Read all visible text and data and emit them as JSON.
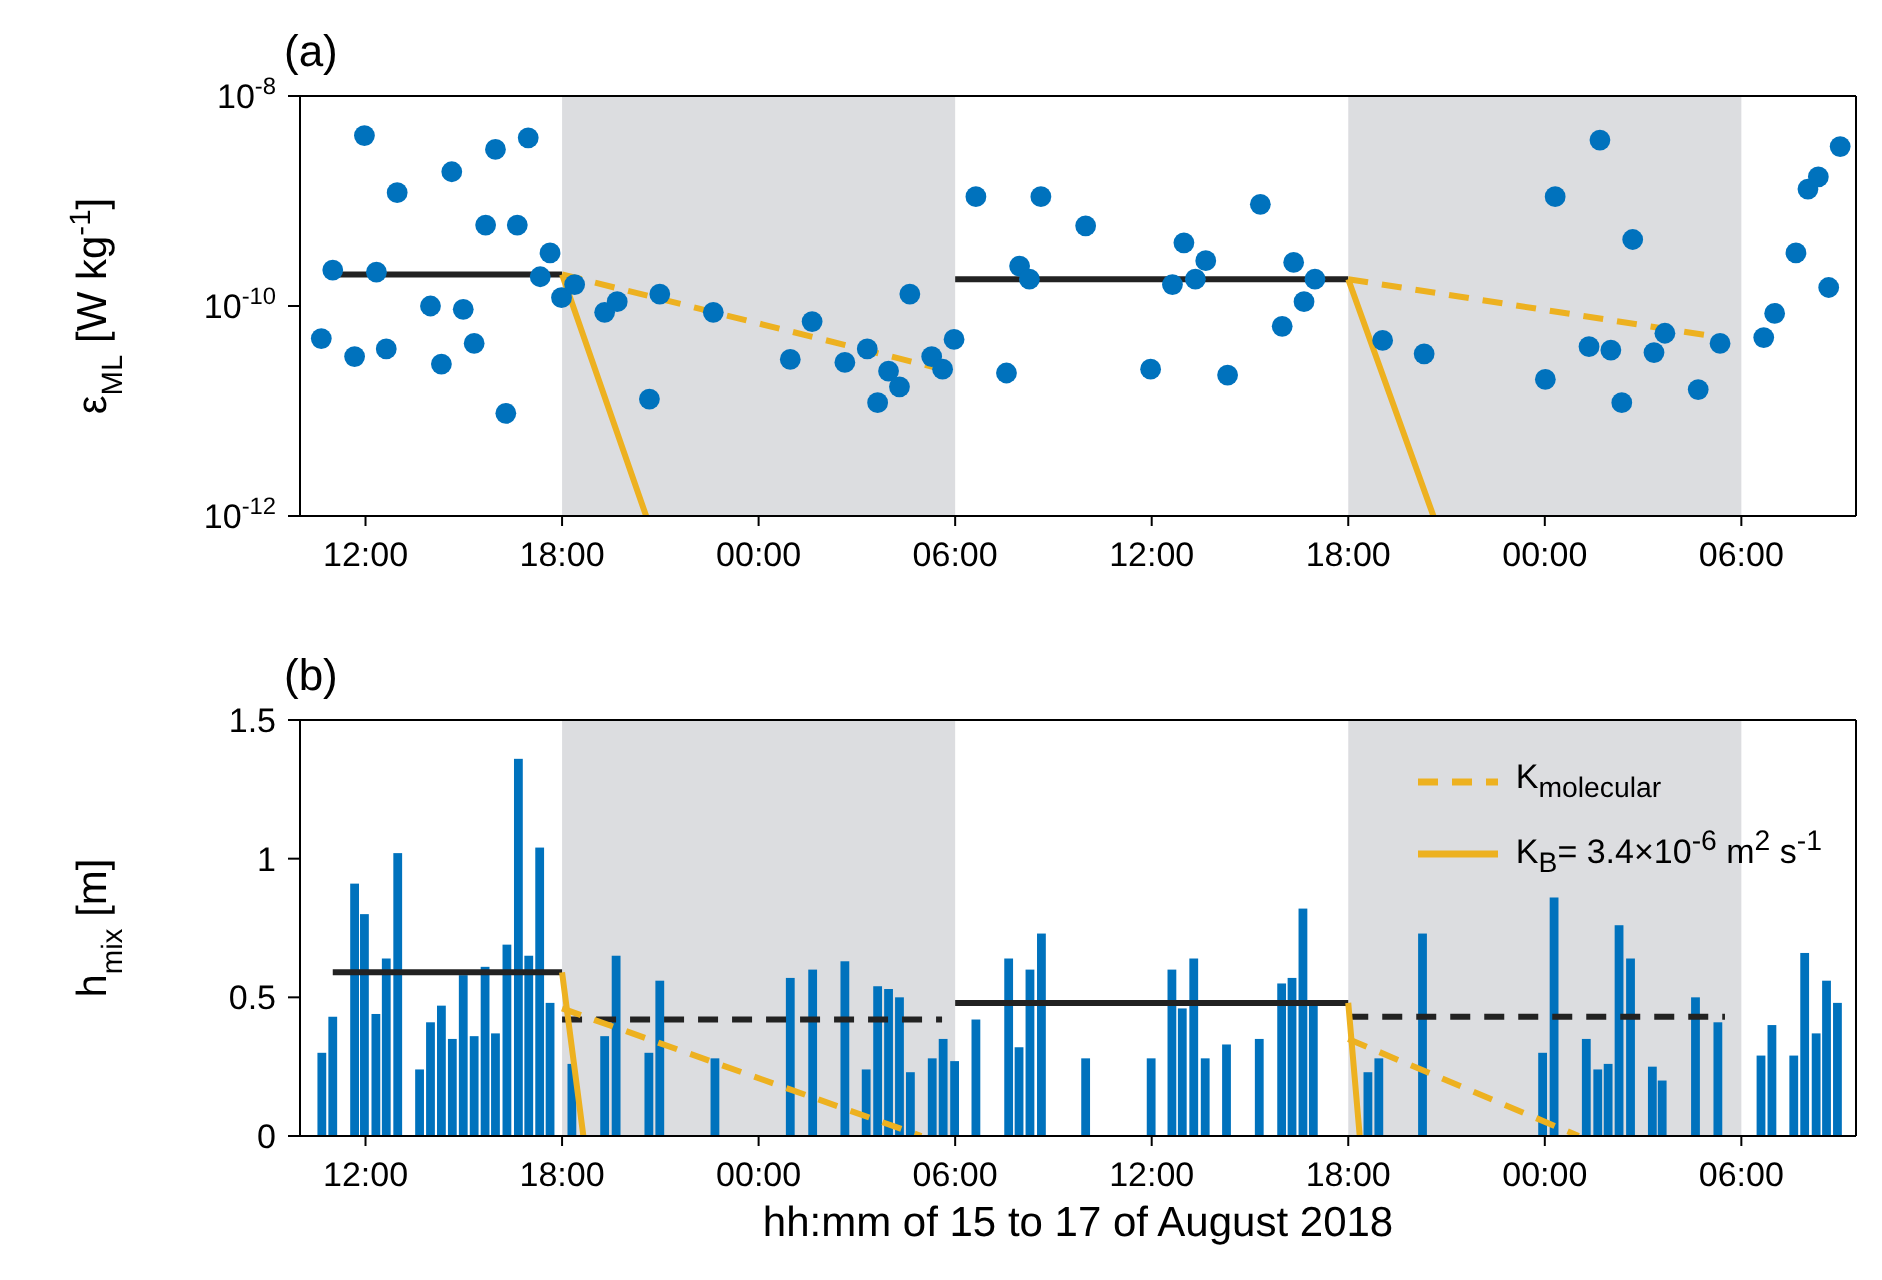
{
  "chart_data": [
    {
      "type": "scatter",
      "title": "(a)",
      "ylabel": "ε$_{ML}$ [W kg$^{-1}$]",
      "log": "y",
      "xlim": [
        "2018-08-15T10:00",
        "2018-08-17T09:30"
      ],
      "xticks": [
        {
          "value": "2018-08-15T12:00",
          "label": "12:00"
        },
        {
          "value": "2018-08-15T18:00",
          "label": "18:00"
        },
        {
          "value": "2018-08-16T00:00",
          "label": "00:00"
        },
        {
          "value": "2018-08-16T06:00",
          "label": "06:00"
        },
        {
          "value": "2018-08-16T12:00",
          "label": "12:00"
        },
        {
          "value": "2018-08-16T18:00",
          "label": "18:00"
        },
        {
          "value": "2018-08-17T00:00",
          "label": "00:00"
        },
        {
          "value": "2018-08-17T06:00",
          "label": "06:00"
        }
      ],
      "ylim": [
        1e-12,
        1e-08
      ],
      "yticks": [
        {
          "value": 1e-12,
          "label": "10$^{-12}$"
        },
        {
          "value": 1e-10,
          "label": "10$^{-10}$"
        },
        {
          "value": 1e-08,
          "label": "10$^{-8}$"
        }
      ],
      "bands": [
        {
          "axis": "x",
          "from": "2018-08-15T18:00",
          "to": "2018-08-16T06:00",
          "color": "#dcdde0"
        },
        {
          "axis": "x",
          "from": "2018-08-16T18:00",
          "to": "2018-08-17T06:00",
          "color": "#dcdde0"
        }
      ],
      "series": [
        {
          "color": "#0072bd",
          "marker": "circle",
          "x": [
            "2018-08-15T10:39",
            "2018-08-15T11:00",
            "2018-08-15T11:40",
            "2018-08-15T11:58",
            "2018-08-15T12:20",
            "2018-08-15T12:38",
            "2018-08-15T12:58",
            "2018-08-15T13:59",
            "2018-08-15T14:19",
            "2018-08-15T14:38",
            "2018-08-15T14:59",
            "2018-08-15T15:19",
            "2018-08-15T15:40",
            "2018-08-15T15:58",
            "2018-08-15T16:17",
            "2018-08-15T16:38",
            "2018-08-15T16:58",
            "2018-08-15T17:20",
            "2018-08-15T17:38",
            "2018-08-15T17:59",
            "2018-08-15T18:23",
            "2018-08-15T19:18",
            "2018-08-15T19:41",
            "2018-08-15T20:40",
            "2018-08-15T20:59",
            "2018-08-15T22:37",
            "2018-08-16T00:58",
            "2018-08-16T01:38",
            "2018-08-16T02:38",
            "2018-08-16T03:19",
            "2018-08-16T03:38",
            "2018-08-16T03:58",
            "2018-08-16T04:18",
            "2018-08-16T04:37",
            "2018-08-16T05:17",
            "2018-08-16T05:37",
            "2018-08-16T05:58",
            "2018-08-16T06:38",
            "2018-08-16T07:34",
            "2018-08-16T07:58",
            "2018-08-16T08:16",
            "2018-08-16T08:37",
            "2018-08-16T09:59",
            "2018-08-16T11:58",
            "2018-08-16T12:38",
            "2018-08-16T12:59",
            "2018-08-16T13:20",
            "2018-08-16T13:39",
            "2018-08-16T14:19",
            "2018-08-16T15:19",
            "2018-08-16T15:59",
            "2018-08-16T16:20",
            "2018-08-16T16:39",
            "2018-08-16T16:59",
            "2018-08-16T19:03",
            "2018-08-16T20:19",
            "2018-08-17T00:01",
            "2018-08-17T00:19",
            "2018-08-17T01:21",
            "2018-08-17T01:41",
            "2018-08-17T02:01",
            "2018-08-17T02:21",
            "2018-08-17T02:41",
            "2018-08-17T03:20",
            "2018-08-17T03:40",
            "2018-08-17T04:41",
            "2018-08-17T05:21",
            "2018-08-17T06:41",
            "2018-08-17T07:01",
            "2018-08-17T07:40",
            "2018-08-17T08:02",
            "2018-08-17T08:21",
            "2018-08-17T08:40",
            "2018-08-17T09:01"
          ],
          "values": [
            4.9e-11,
            2.2e-10,
            3.3e-11,
            4.2e-09,
            2.1e-10,
            3.9e-11,
            1.2e-09,
            1e-10,
            2.8e-11,
            1.9e-09,
            9.3e-11,
            4.4e-11,
            5.9e-10,
            3.1e-09,
            9.5e-12,
            5.9e-10,
            4e-09,
            1.9e-10,
            3.2e-10,
            1.2e-10,
            1.6e-10,
            8.7e-11,
            1.1e-10,
            1.3e-11,
            1.3e-10,
            8.7e-11,
            3.1e-11,
            7.1e-11,
            2.9e-11,
            3.9e-11,
            1.2e-11,
            2.4e-11,
            1.7e-11,
            1.3e-10,
            3.3e-11,
            2.5e-11,
            4.8e-11,
            1.1e-09,
            2.3e-11,
            2.4e-10,
            1.8e-10,
            1.1e-09,
            5.8e-10,
            2.5e-11,
            1.6e-10,
            4e-10,
            1.8e-10,
            2.7e-10,
            2.2e-11,
            9.3e-10,
            6.4e-11,
            2.6e-10,
            1.1e-10,
            1.8e-10,
            4.7e-11,
            3.5e-11,
            2e-11,
            1.1e-09,
            4.1e-11,
            3.8e-09,
            3.8e-11,
            1.2e-11,
            4.3e-10,
            3.6e-11,
            5.5e-11,
            1.6e-11,
            4.4e-11,
            5e-11,
            8.5e-11,
            3.2e-10,
            1.3e-09,
            1.7e-09,
            1.5e-10,
            3.3e-09
          ]
        },
        {
          "type": "line",
          "color": "#222222",
          "line_style": "solid",
          "x": [
            "2018-08-15T11:00",
            "2018-08-15T18:00"
          ],
          "values": [
            2e-10,
            2e-10
          ]
        },
        {
          "type": "line",
          "color": "#222222",
          "line_style": "solid",
          "x": [
            "2018-08-16T06:00",
            "2018-08-16T18:00"
          ],
          "values": [
            1.8e-10,
            1.8e-10
          ]
        },
        {
          "type": "line",
          "color": "#edb120",
          "line_style": "dashed",
          "x": [
            "2018-08-15T18:00",
            "2018-08-16T05:36",
            "2018-08-16T11:00",
            "2018-08-16T18:00",
            "2018-08-17T05:24"
          ],
          "values": [
            2e-10,
            2.5e-11,
            null,
            1.8e-10,
            5e-11
          ]
        },
        {
          "type": "line",
          "color": "#edb120",
          "line_style": "solid",
          "x": [
            "2018-08-15T18:00",
            "2018-08-15T20:34",
            "2018-08-16T11:00",
            "2018-08-16T18:00",
            "2018-08-16T20:36"
          ],
          "values": [
            2e-10,
            1e-12,
            null,
            1.8e-10,
            1e-12
          ]
        }
      ]
    },
    {
      "type": "bar",
      "title": "(b)",
      "xlabel": "hh:mm of 15 to 17 of August 2018",
      "ylabel": "h$_{mix}$ [m]",
      "legend": "top right",
      "xlim": [
        "2018-08-15T10:00",
        "2018-08-17T09:30"
      ],
      "xticks": [
        {
          "value": "2018-08-15T12:00",
          "label": "12:00"
        },
        {
          "value": "2018-08-15T18:00",
          "label": "18:00"
        },
        {
          "value": "2018-08-16T00:00",
          "label": "00:00"
        },
        {
          "value": "2018-08-16T06:00",
          "label": "06:00"
        },
        {
          "value": "2018-08-16T12:00",
          "label": "12:00"
        },
        {
          "value": "2018-08-16T18:00",
          "label": "18:00"
        },
        {
          "value": "2018-08-17T00:00",
          "label": "00:00"
        },
        {
          "value": "2018-08-17T06:00",
          "label": "06:00"
        }
      ],
      "ylim": [
        0,
        1.5
      ],
      "yticks": [
        0,
        0.5,
        1,
        1.5
      ],
      "bands": [
        {
          "axis": "x",
          "from": "2018-08-15T18:00",
          "to": "2018-08-16T06:00",
          "color": "#dcdde0"
        },
        {
          "axis": "x",
          "from": "2018-08-16T18:00",
          "to": "2018-08-17T06:00",
          "color": "#dcdde0"
        }
      ],
      "series": [
        {
          "color": "#0072bd",
          "x": [
            "2018-08-15T10:40",
            "2018-08-15T11:00",
            "2018-08-15T11:40",
            "2018-08-15T11:58",
            "2018-08-15T12:19",
            "2018-08-15T12:38",
            "2018-08-15T12:59",
            "2018-08-15T13:39",
            "2018-08-15T13:59",
            "2018-08-15T14:19",
            "2018-08-15T14:39",
            "2018-08-15T14:59",
            "2018-08-15T15:19",
            "2018-08-15T15:39",
            "2018-08-15T15:58",
            "2018-08-15T16:19",
            "2018-08-15T16:40",
            "2018-08-15T16:59",
            "2018-08-15T17:19",
            "2018-08-15T17:38",
            "2018-08-15T18:18",
            "2018-08-15T19:18",
            "2018-08-15T19:39",
            "2018-08-15T20:39",
            "2018-08-15T20:59",
            "2018-08-15T22:40",
            "2018-08-16T00:58",
            "2018-08-16T01:39",
            "2018-08-16T02:38",
            "2018-08-16T03:17",
            "2018-08-16T03:38",
            "2018-08-16T03:58",
            "2018-08-16T04:18",
            "2018-08-16T04:38",
            "2018-08-16T05:18",
            "2018-08-16T05:38",
            "2018-08-16T05:59",
            "2018-08-16T06:38",
            "2018-08-16T07:38",
            "2018-08-16T07:57",
            "2018-08-16T08:17",
            "2018-08-16T08:38",
            "2018-08-16T09:59",
            "2018-08-16T11:59",
            "2018-08-16T12:37",
            "2018-08-16T12:56",
            "2018-08-16T13:17",
            "2018-08-16T13:38",
            "2018-08-16T14:17",
            "2018-08-16T15:17",
            "2018-08-16T15:58",
            "2018-08-16T16:17",
            "2018-08-16T16:37",
            "2018-08-16T16:56",
            "2018-08-16T18:36",
            "2018-08-16T18:56",
            "2018-08-16T20:16",
            "2018-08-16T23:56",
            "2018-08-17T00:17",
            "2018-08-17T01:16",
            "2018-08-17T01:37",
            "2018-08-17T01:56",
            "2018-08-17T02:16",
            "2018-08-17T02:37",
            "2018-08-17T03:17",
            "2018-08-17T03:35",
            "2018-08-17T04:36",
            "2018-08-17T05:17",
            "2018-08-17T06:36",
            "2018-08-17T06:56",
            "2018-08-17T07:36",
            "2018-08-17T07:56",
            "2018-08-17T08:17",
            "2018-08-17T08:36",
            "2018-08-17T08:56"
          ],
          "values": [
            0.3,
            0.43,
            0.91,
            0.8,
            0.44,
            0.64,
            1.02,
            0.24,
            0.41,
            0.47,
            0.35,
            0.58,
            0.36,
            0.61,
            0.37,
            0.69,
            1.36,
            0.65,
            1.04,
            0.48,
            0.26,
            0.36,
            0.65,
            0.3,
            0.56,
            0.28,
            0.57,
            0.6,
            0.63,
            0.24,
            0.54,
            0.53,
            0.5,
            0.23,
            0.28,
            0.35,
            0.27,
            0.42,
            0.64,
            0.32,
            0.6,
            0.73,
            0.28,
            0.28,
            0.6,
            0.46,
            0.64,
            0.28,
            0.33,
            0.35,
            0.55,
            0.57,
            0.82,
            0.47,
            0.23,
            0.28,
            0.73,
            0.3,
            0.86,
            0.35,
            0.24,
            0.26,
            0.76,
            0.64,
            0.25,
            0.2,
            0.5,
            0.41,
            0.29,
            0.4,
            0.29,
            0.66,
            0.37,
            0.56,
            0.48
          ]
        },
        {
          "type": "line",
          "color": "#222222",
          "line_style": "solid",
          "x": [
            "2018-08-15T11:00",
            "2018-08-15T18:00"
          ],
          "values": [
            0.59,
            0.59
          ]
        },
        {
          "type": "line",
          "color": "#222222",
          "line_style": "dashed",
          "x": [
            "2018-08-15T18:00",
            "2018-08-16T05:36"
          ],
          "values": [
            0.42,
            0.42
          ]
        },
        {
          "type": "line",
          "color": "#222222",
          "line_style": "solid",
          "x": [
            "2018-08-16T06:00",
            "2018-08-16T18:00"
          ],
          "values": [
            0.48,
            0.48
          ]
        },
        {
          "type": "line",
          "color": "#222222",
          "line_style": "dashed",
          "x": [
            "2018-08-16T18:00",
            "2018-08-17T05:30"
          ],
          "values": [
            0.43,
            0.43
          ]
        },
        {
          "type": "line",
          "name": "K$_{molecular}$",
          "color": "#edb120",
          "line_style": "dashed",
          "x": [
            "2018-08-15T18:00",
            "2018-08-16T04:58",
            "2018-08-16T11:00",
            "2018-08-16T18:00",
            "2018-08-17T01:02"
          ],
          "values": [
            0.46,
            0,
            null,
            0.35,
            0
          ]
        },
        {
          "type": "line",
          "name": "K$_{B}$= 3.4×10$^{-6}$ m$^{2}$ s$^{-1}$",
          "color": "#edb120",
          "line_style": "solid",
          "x": [
            "2018-08-15T18:00",
            "2018-08-15T18:39",
            "2018-08-16T11:00",
            "2018-08-16T18:00",
            "2018-08-16T18:21"
          ],
          "values": [
            0.59,
            0,
            null,
            0.48,
            0
          ]
        }
      ]
    }
  ]
}
